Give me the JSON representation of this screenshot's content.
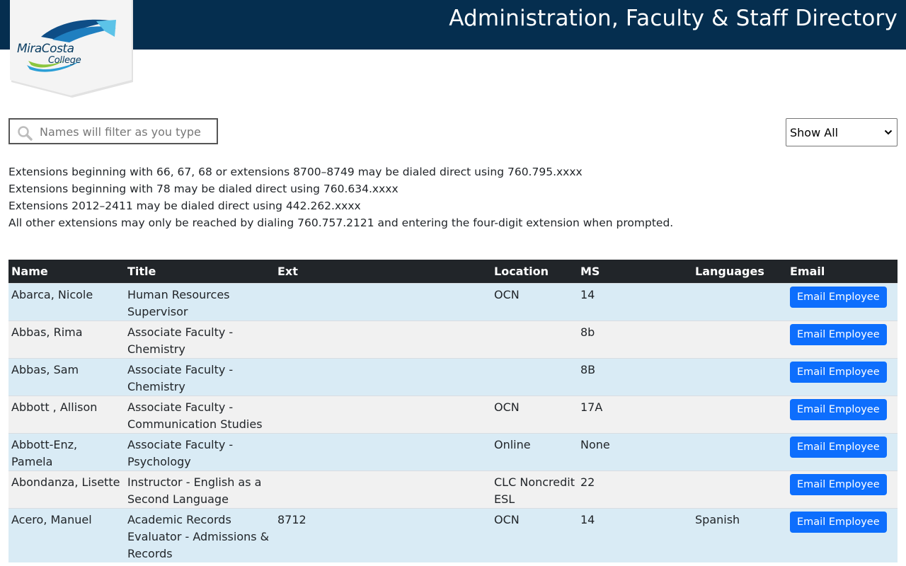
{
  "header": {
    "title": "Administration, Faculty & Staff Directory",
    "logo_line1": "MiraCosta",
    "logo_line2": "College"
  },
  "search": {
    "placeholder": "Names will filter as you type",
    "value": ""
  },
  "filter": {
    "selected": "Show All"
  },
  "notes": [
    "Extensions beginning with 66, 67, 68 or extensions 8700–8749 may be dialed direct using 760.795.xxxx",
    "Extensions beginning with 78 may be dialed direct using 760.634.xxxx",
    "Extensions 2012–2411 may be dialed direct using 442.262.xxxx",
    "All other extensions may only be reached by dialing 760.757.2121 and entering the four-digit extension when prompted."
  ],
  "table": {
    "headers": [
      "Name",
      "Title",
      "Ext",
      "Location",
      "MS",
      "Languages",
      "Email"
    ],
    "rows": [
      {
        "name": "Abarca, Nicole",
        "title": "Human Resources Supervisor",
        "ext": "",
        "location": "OCN",
        "ms": "14",
        "languages": "",
        "email": "Email Employee"
      },
      {
        "name": "Abbas, Rima",
        "title": "Associate Faculty - Chemistry",
        "ext": "",
        "location": "",
        "ms": "8b",
        "languages": "",
        "email": "Email Employee"
      },
      {
        "name": "Abbas, Sam",
        "title": "Associate Faculty - Chemistry",
        "ext": "",
        "location": "",
        "ms": "8B",
        "languages": "",
        "email": "Email Employee"
      },
      {
        "name": "Abbott , Allison",
        "title": "Associate Faculty - Communication Studies",
        "ext": "",
        "location": "OCN",
        "ms": "17A",
        "languages": "",
        "email": "Email Employee"
      },
      {
        "name": "Abbott-Enz, Pamela",
        "title": "Associate Faculty - Psychology",
        "ext": "",
        "location": "Online",
        "ms": "None",
        "languages": "",
        "email": "Email Employee"
      },
      {
        "name": "Abondanza, Lisette",
        "title": "Instructor - English as a Second Language",
        "ext": "",
        "location": "CLC Noncredit ESL",
        "ms": "22",
        "languages": "",
        "email": "Email Employee"
      },
      {
        "name": "Acero, Manuel",
        "title": "Academic Records Evaluator - Admissions & Records",
        "ext": "8712",
        "location": "OCN",
        "ms": "14",
        "languages": "Spanish",
        "email": "Email Employee"
      }
    ]
  },
  "colors": {
    "header_bg": "#052e4f",
    "table_head_bg": "#212529",
    "row_odd": "#d9ebf5",
    "row_even": "#f1f1f1",
    "button": "#0d6efd"
  },
  "icons": {
    "search": "search-icon",
    "dropdown": "chevron-down-icon",
    "logo": "miracosta-logo"
  }
}
